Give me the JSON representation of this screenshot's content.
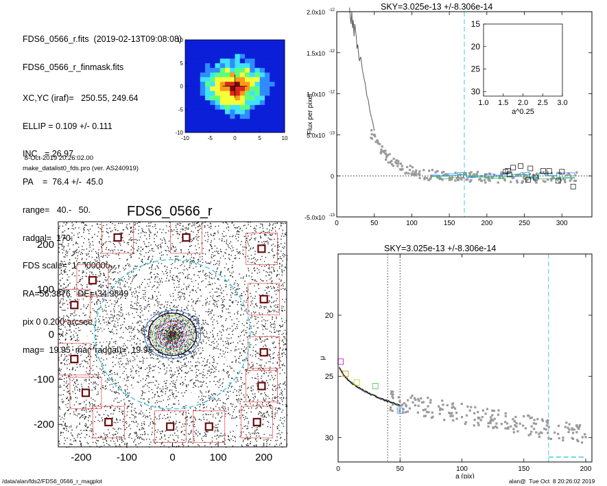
{
  "info": {
    "lines": [
      "FDS6_0566_r.fits  (2019-02-13T09:08:08)",
      "FDS6_0566_r_finmask.fits",
      "XC,YC (iraf)=   250.55, 249.64",
      "ELLIP = 0.109 +/- 0.111",
      "INC   = 26.97",
      "PA    =  76.4 +/-  45.0",
      "range=   40.-   50.",
      "radgal=  170.",
      "FDS scale=  100000000.",
      "RA=56.3876   DE=-34.9849",
      "pix 0 0.200 arcsec",
      "mag=  19.95  mag(radgal)=  19.95"
    ],
    "date": " 8-Oct-2019 20:26:02.00",
    "program": "make_datalist0_fds.pro (ver. AS240919)"
  },
  "footer": {
    "path": "/data/alan/fds2/FDS6_0566_r_magplot",
    "user": "alan@  Tue Oct  8 20:26:02 2019"
  },
  "chart_data": [
    {
      "id": "cutout",
      "type": "heatmap",
      "xlim": [
        -10,
        10
      ],
      "ylim": [
        -10,
        10
      ],
      "xticks": [
        -10,
        -5,
        0,
        5,
        10
      ],
      "yticks": [
        -10,
        -5,
        0,
        5,
        10
      ],
      "colors": [
        "#0b1fd8",
        "#2f8bff",
        "#3fe3ff",
        "#5cff7c",
        "#f4ff3a",
        "#ff9b1a",
        "#e0261c",
        "#7a0a0a"
      ]
    },
    {
      "id": "image",
      "type": "scatter",
      "title": "FDS6_0566_r",
      "xlim": [
        -250,
        250
      ],
      "ylim": [
        -250,
        250
      ],
      "xticks": [
        -200,
        -100,
        0,
        100,
        200
      ],
      "yticks": [
        -200,
        -100,
        0,
        100,
        200
      ],
      "sky_ellipse_radius": 170,
      "sky_boxes": [
        [
          -120,
          215
        ],
        [
          30,
          215
        ],
        [
          195,
          190
        ],
        [
          -175,
          120
        ],
        [
          200,
          78
        ],
        [
          -215,
          65
        ],
        [
          -215,
          -55
        ],
        [
          200,
          -40
        ],
        [
          -190,
          -130
        ],
        [
          195,
          -115
        ],
        [
          -140,
          -195
        ],
        [
          -5,
          -205
        ],
        [
          80,
          -205
        ],
        [
          185,
          -195
        ]
      ],
      "masks": [
        [
          -130,
          165,
          12
        ],
        [
          -200,
          150,
          8
        ],
        [
          -60,
          140,
          10
        ],
        [
          150,
          150,
          14
        ],
        [
          -205,
          70,
          6
        ],
        [
          -15,
          100,
          14
        ],
        [
          -50,
          95,
          6
        ],
        [
          -20,
          80,
          8
        ],
        [
          240,
          90,
          9
        ],
        [
          60,
          55,
          9
        ],
        [
          -150,
          -5,
          12
        ],
        [
          -175,
          -40,
          6
        ],
        [
          -200,
          -90,
          10
        ],
        [
          -110,
          -110,
          6
        ],
        [
          -30,
          -95,
          9
        ],
        [
          125,
          -50,
          9
        ],
        [
          -195,
          -10,
          9
        ],
        [
          -145,
          -140,
          16
        ],
        [
          -80,
          -130,
          12
        ],
        [
          40,
          -145,
          15
        ],
        [
          130,
          -140,
          6
        ],
        [
          -160,
          -210,
          12
        ],
        [
          120,
          -200,
          14
        ],
        [
          210,
          -215,
          8
        ],
        [
          -220,
          -190,
          12
        ],
        [
          10,
          -165,
          8
        ],
        [
          170,
          -105,
          5
        ],
        [
          -25,
          -200,
          10
        ],
        [
          60,
          -200,
          8
        ]
      ]
    },
    {
      "id": "sky",
      "type": "scatter",
      "title": "SKY=3.025e-13 +/-8.306e-14",
      "ylabel": "Flux per pixel",
      "xlim": [
        0,
        340
      ],
      "ylim": [
        -5e-13,
        2e-12
      ],
      "xticks": [
        0,
        50,
        100,
        150,
        200,
        250,
        300
      ],
      "yticks": [
        -5e-13,
        0,
        5e-13,
        1e-12,
        1.5e-12,
        2e-12
      ],
      "ytick_labels": [
        [
          "-5.0",
          "-13"
        ],
        [
          "0",
          ""
        ],
        [
          "5.0",
          "-13"
        ],
        [
          "1.0",
          "-12"
        ],
        [
          "1.5",
          "-12"
        ],
        [
          "2.0",
          "-12"
        ]
      ],
      "radgal": 170,
      "profile": [
        [
          17,
          2.05e-12
        ],
        [
          18,
          1.93e-12
        ],
        [
          19,
          1.85e-12
        ],
        [
          20,
          2e-12
        ],
        [
          21,
          1.8e-12
        ],
        [
          22,
          1.9e-12
        ],
        [
          23,
          1.7e-12
        ],
        [
          24,
          1.85e-12
        ],
        [
          26,
          1.7e-12
        ],
        [
          27,
          1.55e-12
        ],
        [
          28,
          1.6e-12
        ],
        [
          30,
          1.4e-12
        ],
        [
          32,
          1.45e-12
        ],
        [
          34,
          1.3e-12
        ],
        [
          36,
          1.2e-12
        ],
        [
          38,
          1.12e-12
        ],
        [
          40,
          9.8e-13
        ],
        [
          42,
          9.2e-13
        ],
        [
          44,
          8e-13
        ],
        [
          46,
          7.2e-13
        ],
        [
          48,
          6.5e-13
        ],
        [
          50,
          5.5e-13
        ]
      ],
      "boxes": [
        [
          225,
          5e-14
        ],
        [
          230,
          2e-14
        ],
        [
          235,
          1e-13
        ],
        [
          245,
          1.2e-13
        ],
        [
          258,
          9e-14
        ],
        [
          265,
          -2e-14
        ],
        [
          275,
          6e-14
        ],
        [
          283,
          6e-14
        ],
        [
          295,
          -6e-14
        ],
        [
          300,
          5e-14
        ],
        [
          315,
          -1.3e-13
        ],
        [
          228,
          6e-14
        ],
        [
          255,
          -5e-14
        ]
      ],
      "inset": {
        "xlabel": "a^0.25",
        "xlim": [
          1.0,
          3.0
        ],
        "ylim": [
          15,
          31
        ],
        "xticks": [
          1.0,
          1.5,
          2.0,
          2.5,
          3.0
        ],
        "yticks": [
          15,
          20,
          25,
          30
        ]
      }
    },
    {
      "id": "mu",
      "type": "scatter",
      "title": "SKY=3.025e-13 +/-8.306e-14",
      "xlabel": "a (pix)",
      "ylabel": "μ",
      "xlim": [
        0,
        205
      ],
      "ylim": [
        15,
        32
      ],
      "xticks": [
        0,
        50,
        100,
        150,
        200
      ],
      "yticks": [
        20,
        25,
        30
      ],
      "range_lines": [
        40,
        50
      ],
      "radgal": 170,
      "fit_boxes": [
        [
          2,
          23.8,
          "#d000d0"
        ],
        [
          6,
          24.8,
          "#d08000"
        ],
        [
          15,
          25.5,
          "#d0d000"
        ],
        [
          30,
          25.8,
          "#40c040"
        ],
        [
          50,
          27.8,
          "#3080ff"
        ]
      ]
    }
  ]
}
